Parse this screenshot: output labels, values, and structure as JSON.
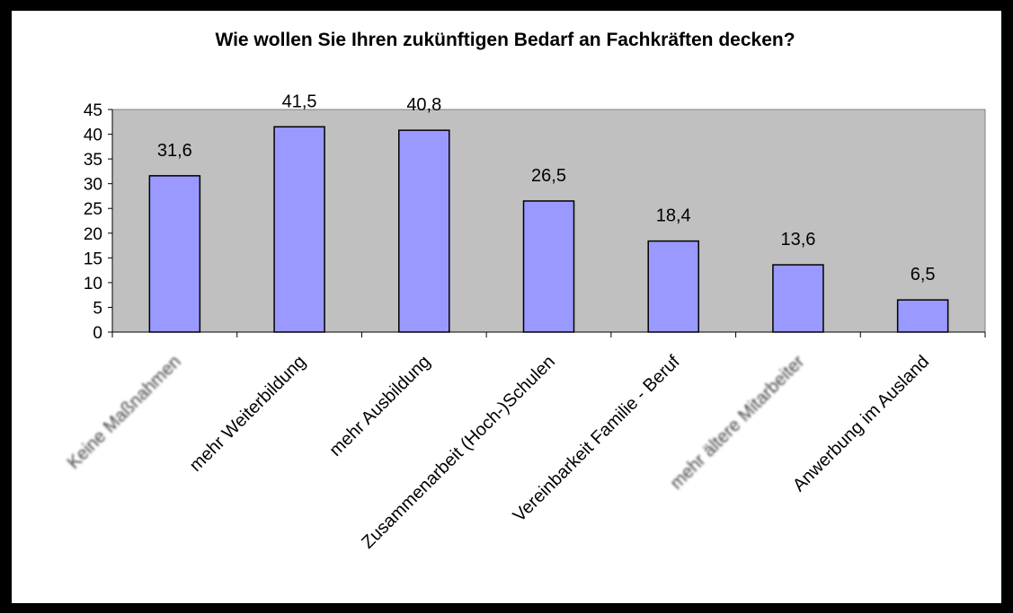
{
  "chart_data": {
    "type": "bar",
    "title": "Wie wollen Sie Ihren zukünftigen Bedarf an Fachkräften decken?",
    "xlabel": "",
    "ylabel": "",
    "categories": [
      "Keine Maßnahmen",
      "mehr Weiterbildung",
      "mehr Ausbildung",
      "Zusammenarbeit (Hoch-)Schulen",
      "Vereinbarkeit Familie - Beruf",
      "mehr ältere Mitarbeiter",
      "Anwerbung im Ausland"
    ],
    "values": [
      31.6,
      41.5,
      40.8,
      26.5,
      18.4,
      13.6,
      6.5
    ],
    "value_labels": [
      "31,6",
      "41,5",
      "40,8",
      "26,5",
      "18,4",
      "13,6",
      "6,5"
    ],
    "blurred_categories": [
      0,
      5
    ],
    "ylim": [
      0,
      45
    ],
    "yticks": [
      0,
      5,
      10,
      15,
      20,
      25,
      30,
      35,
      40,
      45
    ],
    "ytick_labels": [
      "0",
      "5",
      "10",
      "15",
      "20",
      "25",
      "30",
      "35",
      "40",
      "45"
    ],
    "grid": false,
    "legend": "none",
    "colors": {
      "bar_fill": "#9999ff",
      "bar_stroke": "#000000",
      "plot_background": "#c0c0c0",
      "frame": "#000000",
      "chart_background": "#ffffff"
    }
  }
}
